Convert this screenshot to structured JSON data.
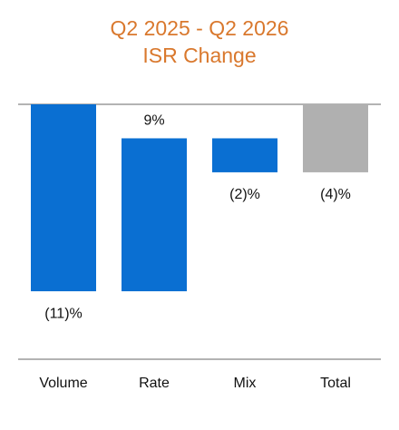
{
  "chart_data": {
    "type": "waterfall",
    "title": [
      "Q2 2025 - Q2 2026",
      "ISR Change"
    ],
    "categories": [
      "Volume",
      "Rate",
      "Mix",
      "Total"
    ],
    "values": [
      -11,
      9,
      -2,
      -4
    ],
    "value_labels": [
      "(11)%",
      "9%",
      "(2)%",
      "(4)%"
    ],
    "is_total": [
      false,
      false,
      false,
      true
    ],
    "colors": [
      "#0a6fd2",
      "#0a6fd2",
      "#0a6fd2",
      "#b0b0b0"
    ],
    "ylim": [
      -15,
      0
    ]
  }
}
